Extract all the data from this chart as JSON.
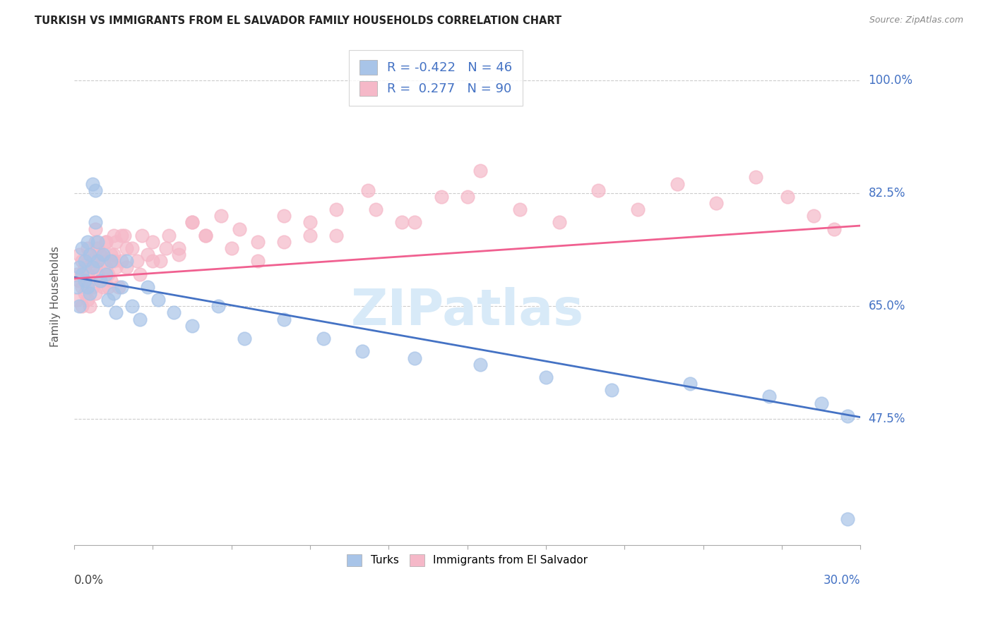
{
  "title": "TURKISH VS IMMIGRANTS FROM EL SALVADOR FAMILY HOUSEHOLDS CORRELATION CHART",
  "source": "Source: ZipAtlas.com",
  "ylabel": "Family Households",
  "ytick_labels": [
    "100.0%",
    "82.5%",
    "65.0%",
    "47.5%"
  ],
  "ytick_values": [
    1.0,
    0.825,
    0.65,
    0.475
  ],
  "xmin": 0.0,
  "xmax": 0.3,
  "ymin": 0.28,
  "ymax": 1.05,
  "legend_blue_r": "-0.422",
  "legend_blue_n": "46",
  "legend_pink_r": "0.277",
  "legend_pink_n": "90",
  "blue_dot_color": "#a8c4e8",
  "pink_dot_color": "#f5b8c8",
  "blue_line_color": "#4472c4",
  "pink_line_color": "#f06090",
  "watermark_color": "#d8eaf8",
  "blue_line_x0": 0.0,
  "blue_line_y0": 0.695,
  "blue_line_x1": 0.3,
  "blue_line_y1": 0.478,
  "pink_line_x0": 0.0,
  "pink_line_y0": 0.693,
  "pink_line_x1": 0.3,
  "pink_line_y1": 0.775,
  "turks_x": [
    0.001,
    0.002,
    0.002,
    0.003,
    0.003,
    0.004,
    0.004,
    0.005,
    0.005,
    0.006,
    0.006,
    0.007,
    0.007,
    0.008,
    0.008,
    0.009,
    0.009,
    0.01,
    0.011,
    0.012,
    0.013,
    0.014,
    0.015,
    0.016,
    0.018,
    0.02,
    0.022,
    0.025,
    0.028,
    0.032,
    0.038,
    0.045,
    0.055,
    0.065,
    0.08,
    0.095,
    0.11,
    0.13,
    0.155,
    0.18,
    0.205,
    0.235,
    0.265,
    0.285,
    0.295,
    0.295
  ],
  "turks_y": [
    0.68,
    0.71,
    0.65,
    0.74,
    0.7,
    0.69,
    0.72,
    0.75,
    0.68,
    0.73,
    0.67,
    0.71,
    0.84,
    0.83,
    0.78,
    0.75,
    0.72,
    0.69,
    0.73,
    0.7,
    0.66,
    0.72,
    0.67,
    0.64,
    0.68,
    0.72,
    0.65,
    0.63,
    0.68,
    0.66,
    0.64,
    0.62,
    0.65,
    0.6,
    0.63,
    0.6,
    0.58,
    0.57,
    0.56,
    0.54,
    0.52,
    0.53,
    0.51,
    0.5,
    0.48,
    0.32
  ],
  "salvador_x": [
    0.001,
    0.001,
    0.002,
    0.002,
    0.003,
    0.003,
    0.003,
    0.004,
    0.004,
    0.005,
    0.005,
    0.005,
    0.006,
    0.006,
    0.006,
    0.007,
    0.007,
    0.008,
    0.008,
    0.008,
    0.009,
    0.009,
    0.01,
    0.01,
    0.011,
    0.011,
    0.012,
    0.012,
    0.013,
    0.013,
    0.014,
    0.014,
    0.015,
    0.015,
    0.016,
    0.016,
    0.017,
    0.018,
    0.019,
    0.02,
    0.022,
    0.024,
    0.026,
    0.028,
    0.03,
    0.033,
    0.036,
    0.04,
    0.045,
    0.05,
    0.056,
    0.063,
    0.07,
    0.08,
    0.09,
    0.1,
    0.112,
    0.125,
    0.14,
    0.155,
    0.17,
    0.185,
    0.2,
    0.215,
    0.23,
    0.245,
    0.26,
    0.272,
    0.282,
    0.29,
    0.008,
    0.01,
    0.012,
    0.015,
    0.018,
    0.02,
    0.025,
    0.03,
    0.035,
    0.04,
    0.045,
    0.05,
    0.06,
    0.07,
    0.08,
    0.09,
    0.1,
    0.115,
    0.13,
    0.15
  ],
  "salvador_y": [
    0.7,
    0.66,
    0.73,
    0.69,
    0.72,
    0.68,
    0.65,
    0.71,
    0.67,
    0.74,
    0.7,
    0.66,
    0.73,
    0.69,
    0.65,
    0.72,
    0.68,
    0.75,
    0.71,
    0.67,
    0.74,
    0.7,
    0.73,
    0.69,
    0.72,
    0.68,
    0.71,
    0.75,
    0.7,
    0.68,
    0.73,
    0.69,
    0.72,
    0.76,
    0.71,
    0.75,
    0.68,
    0.72,
    0.76,
    0.71,
    0.74,
    0.72,
    0.76,
    0.73,
    0.75,
    0.72,
    0.76,
    0.74,
    0.78,
    0.76,
    0.79,
    0.77,
    0.75,
    0.79,
    0.76,
    0.8,
    0.83,
    0.78,
    0.82,
    0.86,
    0.8,
    0.78,
    0.83,
    0.8,
    0.84,
    0.81,
    0.85,
    0.82,
    0.79,
    0.77,
    0.77,
    0.73,
    0.75,
    0.73,
    0.76,
    0.74,
    0.7,
    0.72,
    0.74,
    0.73,
    0.78,
    0.76,
    0.74,
    0.72,
    0.75,
    0.78,
    0.76,
    0.8,
    0.78,
    0.82
  ]
}
